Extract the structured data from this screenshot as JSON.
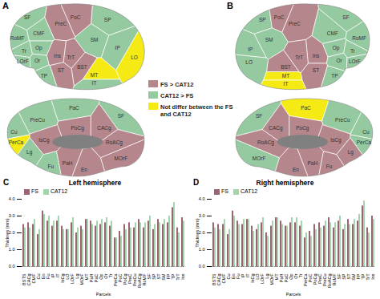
{
  "panel_labels": [
    "A",
    "B",
    "C",
    "D"
  ],
  "brain_maps": {
    "legend": [
      {
        "label": "FS > CAT12",
        "color": "#b5868c"
      },
      {
        "label": "CAT12 > FS",
        "color": "#95c9a0"
      },
      {
        "label": "Not differ between the FS and CAT12",
        "color": "#f5ea14"
      }
    ],
    "panels": [
      {
        "views": [
          {
            "regions": [
              {
                "label": "SF",
                "class": 1
              },
              {
                "label": "PreC",
                "class": 0
              },
              {
                "label": "PoC",
                "class": 0
              },
              {
                "label": "SP",
                "class": 1
              },
              {
                "label": "CMF",
                "class": 1
              },
              {
                "label": "SM",
                "class": 1
              },
              {
                "label": "RoMF",
                "class": 1
              },
              {
                "label": "Op",
                "class": 1
              },
              {
                "label": "IP",
                "class": 1
              },
              {
                "label": "Ins",
                "class": 0
              },
              {
                "label": "Tr",
                "class": 1
              },
              {
                "label": "TrT",
                "class": 0
              },
              {
                "label": "BST",
                "class": 0
              },
              {
                "label": "LOrF",
                "class": 1
              },
              {
                "label": "Or",
                "class": 1
              },
              {
                "label": "ST",
                "class": 0
              },
              {
                "label": "LO",
                "class": 2
              },
              {
                "label": "MT",
                "class": 2
              },
              {
                "label": "IT",
                "class": 1
              },
              {
                "label": "TP",
                "class": 1
              }
            ]
          },
          {
            "regions": [
              {
                "label": "PaC",
                "class": 1
              },
              {
                "label": "SF",
                "class": 1
              },
              {
                "label": "PreCu",
                "class": 1
              },
              {
                "label": "PoCg",
                "class": 0
              },
              {
                "label": "CACg",
                "class": 0
              },
              {
                "label": "IsCg",
                "class": 0
              },
              {
                "label": "RoACg",
                "class": 0
              },
              {
                "label": "Cu",
                "class": 1
              },
              {
                "label": "PerCa",
                "class": 2
              },
              {
                "label": "Lg",
                "class": 1
              },
              {
                "label": "MOrF",
                "class": 0
              },
              {
                "label": "PaH",
                "class": 0
              },
              {
                "label": "En",
                "class": 0
              },
              {
                "label": "Fu",
                "class": 1
              }
            ]
          }
        ]
      },
      {
        "views": [
          {
            "regions": [
              {
                "label": "SP",
                "class": 1
              },
              {
                "label": "PoC",
                "class": 0
              },
              {
                "label": "PreC",
                "class": 0
              },
              {
                "label": "SF",
                "class": 1
              },
              {
                "label": "SM",
                "class": 1
              },
              {
                "label": "CMF",
                "class": 1
              },
              {
                "label": "RoMF",
                "class": 1
              },
              {
                "label": "IP",
                "class": 1
              },
              {
                "label": "Op",
                "class": 1
              },
              {
                "label": "Ins",
                "class": 0
              },
              {
                "label": "TrT",
                "class": 0
              },
              {
                "label": "BST",
                "class": 0
              },
              {
                "label": "Tr",
                "class": 1
              },
              {
                "label": "Or",
                "class": 1
              },
              {
                "label": "LOrF",
                "class": 1
              },
              {
                "label": "LO",
                "class": 1
              },
              {
                "label": "ST",
                "class": 0
              },
              {
                "label": "MT",
                "class": 2
              },
              {
                "label": "IT",
                "class": 2
              },
              {
                "label": "TP",
                "class": 1
              }
            ]
          },
          {
            "regions": [
              {
                "label": "PaC",
                "class": 2
              },
              {
                "label": "SF",
                "class": 1
              },
              {
                "label": "PreCu",
                "class": 1
              },
              {
                "label": "PoCg",
                "class": 0
              },
              {
                "label": "CACg",
                "class": 0
              },
              {
                "label": "IsCg",
                "class": 0
              },
              {
                "label": "RoACg",
                "class": 0
              },
              {
                "label": "Cu",
                "class": 1
              },
              {
                "label": "PerCa",
                "class": 1
              },
              {
                "label": "Lg",
                "class": 0
              },
              {
                "label": "MOrF",
                "class": 1
              },
              {
                "label": "PaH",
                "class": 0
              },
              {
                "label": "En",
                "class": 0
              },
              {
                "label": "Fu",
                "class": 0
              }
            ]
          }
        ]
      }
    ]
  },
  "chart_data": [
    {
      "type": "bar",
      "title": "Left hemisphere",
      "x_label": "Parcels",
      "y_label": "Thicknes (mm)",
      "categories": [
        "BSTS",
        "CACg",
        "CMF",
        "Cu",
        "En",
        "Fu",
        "IP",
        "IT",
        "IsCg",
        "LO",
        "LOrF",
        "Lg",
        "MOrF",
        "MT",
        "PaH",
        "PaC",
        "Op",
        "Or",
        "Tr",
        "PerCa",
        "PoC",
        "PoCg",
        "PreC",
        "PreCu",
        "RoACg",
        "RoMF",
        "SF",
        "SP",
        "ST",
        "SM",
        "FP",
        "TP",
        "TrT",
        "Ins"
      ],
      "series": [
        {
          "name": "FS",
          "color": "#9a6470",
          "values": [
            2.5,
            2.6,
            2.5,
            1.9,
            3.3,
            2.7,
            2.4,
            2.7,
            2.4,
            2.2,
            2.6,
            2.0,
            2.4,
            2.8,
            2.7,
            2.4,
            2.5,
            2.6,
            2.4,
            1.7,
            2.1,
            2.5,
            2.6,
            2.3,
            2.8,
            2.3,
            2.7,
            2.2,
            2.8,
            2.5,
            2.6,
            3.5,
            2.3,
            2.9
          ]
        },
        {
          "name": "CAT12",
          "color": "#a3d6ad",
          "values": [
            2.3,
            2.3,
            2.8,
            2.2,
            3.1,
            3.0,
            2.7,
            3.0,
            2.2,
            2.2,
            2.9,
            2.3,
            2.2,
            2.8,
            2.5,
            2.7,
            2.8,
            2.9,
            2.7,
            1.7,
            1.8,
            2.2,
            2.3,
            2.6,
            2.6,
            2.6,
            3.0,
            2.5,
            2.6,
            2.8,
            3.0,
            3.8,
            2.0,
            2.7
          ]
        }
      ],
      "ylim": [
        0,
        4
      ],
      "yticks": [
        0,
        1,
        2,
        3,
        4
      ],
      "grid": false,
      "legend": "top-left"
    },
    {
      "type": "bar",
      "title": "Right hemisphere",
      "x_label": "Parcels",
      "y_label": "Thicknes (mm)",
      "categories": [
        "BSTS",
        "CACg",
        "CMF",
        "Cu",
        "En",
        "Fu",
        "IP",
        "IT",
        "IsCg",
        "LO",
        "LOrF",
        "Lg",
        "MOrF",
        "MT",
        "PaH",
        "PaC",
        "Op",
        "Or",
        "Tr",
        "PerCa",
        "PoC",
        "PoCg",
        "PreC",
        "PreCu",
        "RoACg",
        "RoMF",
        "SF",
        "SP",
        "ST",
        "SM",
        "FP",
        "TP",
        "TrT",
        "Ins"
      ],
      "series": [
        {
          "name": "FS",
          "color": "#9a6470",
          "values": [
            2.6,
            2.5,
            2.5,
            1.9,
            3.3,
            2.7,
            2.5,
            2.8,
            2.4,
            2.2,
            2.6,
            2.0,
            2.4,
            2.9,
            2.7,
            2.4,
            2.6,
            2.6,
            2.4,
            1.7,
            2.1,
            2.5,
            2.6,
            2.4,
            2.9,
            2.3,
            2.7,
            2.2,
            2.8,
            2.5,
            2.7,
            3.6,
            2.3,
            3.0
          ]
        },
        {
          "name": "CAT12",
          "color": "#a3d6ad",
          "values": [
            2.3,
            2.2,
            2.8,
            2.2,
            3.0,
            2.5,
            2.8,
            2.8,
            2.1,
            2.5,
            2.9,
            1.8,
            2.7,
            2.9,
            2.5,
            2.4,
            2.9,
            2.9,
            2.7,
            2.0,
            1.8,
            2.2,
            2.3,
            2.7,
            2.6,
            2.6,
            3.0,
            2.5,
            2.5,
            2.8,
            3.1,
            3.9,
            2.0,
            2.8
          ]
        }
      ],
      "ylim": [
        0,
        4
      ],
      "yticks": [
        0,
        1,
        2,
        3,
        4
      ],
      "grid": false,
      "legend": "top-left"
    }
  ]
}
